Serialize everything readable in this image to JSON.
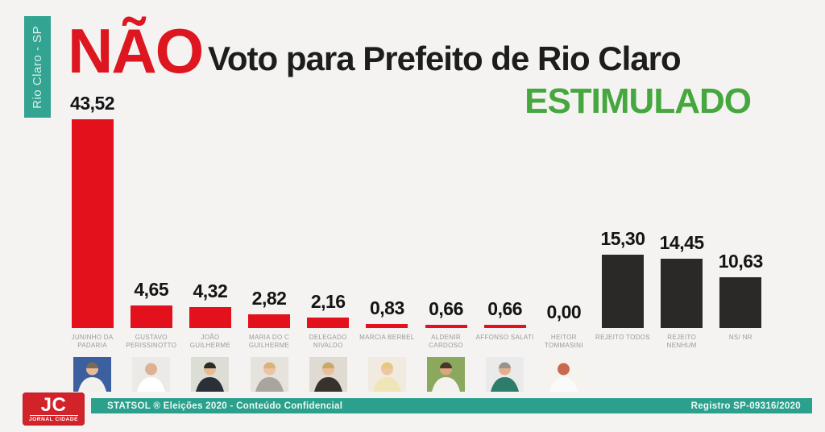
{
  "page": {
    "background": "#f4f3f2",
    "ribbon": {
      "text": "Rio Claro - SP",
      "bg_color": "#32a491"
    },
    "header": {
      "nao": "NÃO",
      "nao_color": "#dd161f",
      "title": "Voto para Prefeito de Rio Claro",
      "subtitle": "ESTIMULADO",
      "subtitle_color": "#46a73e"
    },
    "footer": {
      "logo": {
        "initials": "JC",
        "name": "JORNAL CIDADE",
        "bg_color": "#d2232a"
      },
      "left_text": "STATSOL ®  Eleições 2020  - Conteúdo Confidencial",
      "right_text": "Registro SP-09316/2020",
      "bar_color": "#2ba18d"
    }
  },
  "chart_data": {
    "type": "bar",
    "title": "NÃO — Voto para Prefeito de Rio Claro — ESTIMULADO",
    "xlabel": "",
    "ylabel": "",
    "ylim": [
      0,
      45
    ],
    "grid": false,
    "legend": "none",
    "value_format": "comma-decimal",
    "bar_colors": {
      "candidate": "#e3111c",
      "other": "#2b2928"
    },
    "categories": [
      "JUNINHO DA PADARIA",
      "GUSTAVO PERISSINOTTO",
      "JOÃO GUILHERME",
      "MARIA DO C GUILHERME",
      "DELEGADO NIVALDO",
      "MARCIA BERBEL",
      "ALDENIR CARDOSO",
      "AFFONSO SALATI",
      "HEITOR TOMMASINI",
      "REJEITO TODOS",
      "REJEITO NENHUM",
      "NS/ NR"
    ],
    "values": [
      43.52,
      4.65,
      4.32,
      2.82,
      2.16,
      0.83,
      0.66,
      0.66,
      0.0,
      15.3,
      14.45,
      10.63
    ],
    "bars": [
      {
        "label_lines": [
          "JUNINHO DA",
          "PADARIA"
        ],
        "display": "43,52",
        "value": 43.52,
        "group": "candidate",
        "photo": {
          "bg": "#3c5fa0",
          "shirt": "#f2f1ee",
          "hair": "#7a6a58",
          "skin": "#e8bb96"
        }
      },
      {
        "label_lines": [
          "GUSTAVO",
          "PERISSINOTTO"
        ],
        "display": "4,65",
        "value": 4.65,
        "group": "candidate",
        "photo": {
          "bg": "#eceae6",
          "shirt": "#ffffff",
          "hair": null,
          "skin": "#dfb091"
        }
      },
      {
        "label_lines": [
          "JOÃO GUILHERME"
        ],
        "display": "4,32",
        "value": 4.32,
        "group": "candidate",
        "photo": {
          "bg": "#dcded6",
          "shirt": "#2a2f38",
          "hair": "#2f2a26",
          "skin": "#e8bb96"
        }
      },
      {
        "label_lines": [
          "MARIA DO C",
          "GUILHERME"
        ],
        "display": "2,82",
        "value": 2.82,
        "group": "candidate",
        "photo": {
          "bg": "#e6e2dc",
          "shirt": "#a8a5a0",
          "hair": "#d9b37a",
          "skin": "#eec3a0"
        }
      },
      {
        "label_lines": [
          "DELEGADO",
          "NIVALDO"
        ],
        "display": "2,16",
        "value": 2.16,
        "group": "candidate",
        "photo": {
          "bg": "#e0dbd2",
          "shirt": "#37322e",
          "hair": "#c8a96a",
          "skin": "#ecbf9c"
        }
      },
      {
        "label_lines": [
          "MARCIA BERBEL"
        ],
        "display": "0,83",
        "value": 0.83,
        "group": "candidate",
        "photo": {
          "bg": "#f0eae0",
          "shirt": "#efe6b8",
          "hair": "#e6c87e",
          "skin": "#f0c6a2"
        }
      },
      {
        "label_lines": [
          "ALDENIR",
          "CARDOSO"
        ],
        "display": "0,66",
        "value": 0.66,
        "group": "candidate",
        "photo": {
          "bg": "#8aa85e",
          "shirt": "#f4f2ee",
          "hair": "#4a3428",
          "skin": "#d9a67e"
        }
      },
      {
        "label_lines": [
          "AFFONSO SALATI"
        ],
        "display": "0,66",
        "value": 0.66,
        "group": "candidate",
        "photo": {
          "bg": "#eaeaea",
          "shirt": "#2e7d6a",
          "hair": "#9a938a",
          "skin": "#e4af8c"
        }
      },
      {
        "label_lines": [
          "HEITOR",
          "TOMMASINI"
        ],
        "display": "0,00",
        "value": 0.0,
        "group": "candidate",
        "photo": {
          "bg": "#f6f2ee",
          "shirt": "#fbfafa",
          "hair": null,
          "skin": "#c86a50"
        }
      },
      {
        "label_lines": [
          "REJEITO TODOS"
        ],
        "display": "15,30",
        "value": 15.3,
        "group": "other",
        "photo": null
      },
      {
        "label_lines": [
          "REJEITO NENHUM"
        ],
        "display": "14,45",
        "value": 14.45,
        "group": "other",
        "photo": null
      },
      {
        "label_lines": [
          "NS/ NR"
        ],
        "display": "10,63",
        "value": 10.63,
        "group": "other",
        "photo": null
      }
    ]
  }
}
